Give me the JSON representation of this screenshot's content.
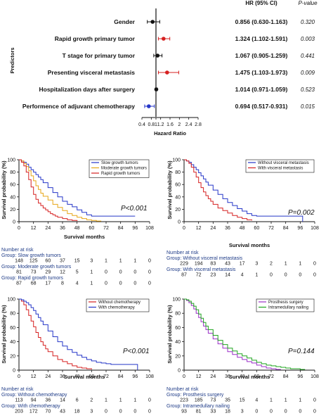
{
  "colors": {
    "red": "#d62020",
    "blue": "#2536c8",
    "black": "#111111",
    "yellow": "#e7a617",
    "green": "#1fa41f",
    "purple": "#9b2fc8"
  },
  "forest": {
    "ylabel": "Predictors",
    "xlabel": "Hazard Ratio",
    "col_hr": "HR (95% CI)",
    "col_p": "P-value",
    "rows": [
      {
        "label": "Gender",
        "hr_text": "0.856 (0.630-1.163)",
        "p_text": "0.320"
      },
      {
        "label": "Rapid growth primary tumor",
        "hr_text": "1.324 (1.102-1.591)",
        "p_text": "0.003"
      },
      {
        "label": "T stage for primary tumor",
        "hr_text": "1.067 (0.905-1.259)",
        "p_text": "0.441"
      },
      {
        "label": "Presenting visceral metastasis",
        "hr_text": "1.475 (1.103-1.973)",
        "p_text": "0.009"
      },
      {
        "label": "Hospitalization days after surgery",
        "hr_text": "1.014 (0.971-1.059)",
        "p_text": "0.523"
      },
      {
        "label": "Performence of adjuvant chemotherapy",
        "hr_text": "0.694 (0.517-0.931)",
        "p_text": "0.015"
      }
    ]
  },
  "chart_data": [
    {
      "type": "forest",
      "xlabel": "Hazard Ratio",
      "ylabel": "Predictors",
      "x_ticks": [
        "0.4",
        "0.8",
        "1",
        "1.2",
        "1.6",
        "2",
        "2.4",
        "2.8"
      ],
      "xlim": [
        0.4,
        2.8
      ],
      "ref_line": 1,
      "series": [
        {
          "label": "Gender",
          "hr": 0.856,
          "lo": 0.63,
          "hi": 1.163,
          "color": "black"
        },
        {
          "label": "Rapid growth primary tumor",
          "hr": 1.324,
          "lo": 1.102,
          "hi": 1.591,
          "color": "red"
        },
        {
          "label": "T stage for primary tumor",
          "hr": 1.067,
          "lo": 0.905,
          "hi": 1.259,
          "color": "black"
        },
        {
          "label": "Presenting visceral metastasis",
          "hr": 1.475,
          "lo": 1.103,
          "hi": 1.973,
          "color": "red"
        },
        {
          "label": "Hospitalization days after surgery",
          "hr": 1.014,
          "lo": 0.971,
          "hi": 1.059,
          "color": "black"
        },
        {
          "label": "Performence of adjuvant chemotherapy",
          "hr": 0.694,
          "lo": 0.517,
          "hi": 0.931,
          "color": "blue"
        }
      ]
    },
    {
      "type": "line",
      "xlabel": "Survival months",
      "ylabel": "Survival probability (%)",
      "xlim": [
        0,
        108
      ],
      "ylim": [
        0,
        100
      ],
      "x_ticks": [
        "0",
        "12",
        "24",
        "36",
        "48",
        "60",
        "72",
        "84",
        "96",
        "108"
      ],
      "y_ticks": [
        "0",
        "20",
        "40",
        "60",
        "80",
        "100"
      ],
      "p_label": "P<0.001",
      "series": [
        {
          "name": "Slow growth tumors",
          "color": "blue",
          "x": [
            0,
            2,
            4,
            6,
            8,
            10,
            12,
            14,
            16,
            18,
            20,
            24,
            28,
            32,
            36,
            40,
            44,
            48,
            52,
            56,
            60,
            64,
            96
          ],
          "y": [
            100,
            98,
            96,
            93,
            88,
            84,
            80,
            76,
            72,
            68,
            63,
            55,
            47,
            40,
            33,
            28,
            24,
            19,
            15,
            11,
            9,
            9,
            9
          ]
        },
        {
          "name": "Moderate growth tumors",
          "color": "yellow",
          "x": [
            0,
            2,
            4,
            6,
            8,
            10,
            12,
            14,
            16,
            18,
            20,
            24,
            28,
            32,
            36,
            40,
            44,
            48,
            52,
            56,
            60,
            64,
            68
          ],
          "y": [
            100,
            98,
            94,
            89,
            82,
            74,
            66,
            58,
            52,
            46,
            41,
            35,
            28,
            23,
            18,
            13,
            10,
            7,
            5,
            3,
            2,
            1,
            1
          ]
        },
        {
          "name": "Rapid growth tumors",
          "color": "red",
          "x": [
            0,
            2,
            4,
            6,
            8,
            10,
            12,
            14,
            16,
            18,
            20,
            22,
            24,
            26,
            28,
            30,
            32,
            36,
            40,
            44,
            48
          ],
          "y": [
            100,
            96,
            90,
            80,
            68,
            56,
            44,
            36,
            30,
            26,
            22,
            19,
            16,
            13,
            11,
            9,
            7,
            5,
            3,
            2,
            1
          ]
        }
      ],
      "risk": {
        "title": "Number at risk",
        "groups": [
          {
            "label": "Group: Slow growth tumors",
            "values": [
              "148",
              "125",
              "60",
              "37",
              "15",
              "3",
              "1",
              "1",
              "1",
              "0"
            ]
          },
          {
            "label": "Group: Moderate growth tumors",
            "values": [
              "81",
              "73",
              "29",
              "12",
              "5",
              "1",
              "0",
              "0",
              "0",
              "0"
            ]
          },
          {
            "label": "Group: Rapid growth tumors",
            "values": [
              "87",
              "68",
              "17",
              "8",
              "4",
              "1",
              "0",
              "0",
              "0",
              "0"
            ]
          }
        ]
      }
    },
    {
      "type": "line",
      "xlabel": "Survival months",
      "ylabel": "Survival probability (%)",
      "xlim": [
        0,
        108
      ],
      "ylim": [
        0,
        100
      ],
      "x_ticks": [
        "0",
        "12",
        "24",
        "36",
        "48",
        "60",
        "72",
        "84",
        "96",
        "108"
      ],
      "y_ticks": [
        "0",
        "20",
        "40",
        "60",
        "80",
        "100"
      ],
      "p_label": "P=0.002",
      "series": [
        {
          "name": "Without visceral metastasis",
          "color": "blue",
          "x": [
            0,
            2,
            4,
            6,
            8,
            10,
            12,
            14,
            16,
            18,
            20,
            24,
            28,
            32,
            36,
            40,
            44,
            48,
            52,
            56,
            60,
            96,
            98
          ],
          "y": [
            100,
            98,
            96,
            92,
            88,
            84,
            79,
            74,
            69,
            64,
            59,
            51,
            44,
            37,
            31,
            26,
            21,
            17,
            13,
            10,
            9,
            9,
            0
          ]
        },
        {
          "name": "With visceral metastasis",
          "color": "red",
          "x": [
            0,
            2,
            4,
            6,
            8,
            10,
            12,
            14,
            16,
            18,
            20,
            22,
            24,
            28,
            32,
            36,
            40,
            44,
            48,
            52,
            56
          ],
          "y": [
            100,
            98,
            94,
            88,
            80,
            72,
            63,
            55,
            48,
            42,
            37,
            33,
            28,
            22,
            18,
            14,
            10,
            7,
            5,
            3,
            2
          ]
        }
      ],
      "risk": {
        "title": "Number at risk",
        "groups": [
          {
            "label": "Group: Without visceral metastasis",
            "values": [
              "229",
              "194",
              "83",
              "43",
              "17",
              "3",
              "2",
              "1",
              "1",
              "0"
            ]
          },
          {
            "label": "Group: With visceral metastasis",
            "values": [
              "87",
              "72",
              "23",
              "14",
              "4",
              "1",
              "0",
              "0",
              "0",
              "0"
            ]
          }
        ]
      }
    },
    {
      "type": "line",
      "xlabel": "Survival months",
      "ylabel": "Survival probability (%)",
      "xlim": [
        0,
        108
      ],
      "ylim": [
        0,
        100
      ],
      "x_ticks": [
        "0",
        "12",
        "24",
        "36",
        "48",
        "60",
        "72",
        "84",
        "96",
        "108"
      ],
      "y_ticks": [
        "0",
        "20",
        "40",
        "60",
        "80",
        "100"
      ],
      "p_label": "P<0.001",
      "series": [
        {
          "name": "Without chemotherapy",
          "color": "red",
          "x": [
            0,
            2,
            4,
            6,
            8,
            10,
            12,
            14,
            16,
            18,
            20,
            22,
            24,
            28,
            32,
            36,
            40,
            44,
            48,
            52,
            56,
            60
          ],
          "y": [
            100,
            97,
            92,
            85,
            77,
            69,
            61,
            53,
            46,
            40,
            35,
            30,
            26,
            20,
            15,
            12,
            9,
            6,
            4,
            3,
            2,
            1
          ]
        },
        {
          "name": "With chemotherapy",
          "color": "blue",
          "x": [
            0,
            2,
            4,
            6,
            8,
            10,
            12,
            14,
            16,
            18,
            20,
            24,
            28,
            32,
            36,
            40,
            44,
            48,
            52,
            56,
            60,
            64,
            68,
            72,
            76,
            84,
            96,
            98
          ],
          "y": [
            100,
            99,
            97,
            95,
            92,
            88,
            84,
            79,
            74,
            69,
            64,
            55,
            47,
            40,
            34,
            29,
            25,
            21,
            18,
            15,
            13,
            11,
            10,
            9,
            8,
            8,
            8,
            0
          ]
        }
      ],
      "risk": {
        "title": "Number at risk",
        "groups": [
          {
            "label": "Group: Without chemotherapy",
            "values": [
              "113",
              "94",
              "36",
              "14",
              "6",
              "2",
              "1",
              "1",
              "1",
              "0"
            ]
          },
          {
            "label": "Group: With chemotherapy",
            "values": [
              "203",
              "172",
              "70",
              "43",
              "18",
              "3",
              "0",
              "0",
              "0",
              "0"
            ]
          }
        ]
      }
    },
    {
      "type": "line",
      "xlabel": "Survival months",
      "ylabel": "Survival probability (%)",
      "xlim": [
        0,
        108
      ],
      "ylim": [
        0,
        100
      ],
      "x_ticks": [
        "0",
        "12",
        "24",
        "36",
        "48",
        "60",
        "72",
        "84",
        "96",
        "108"
      ],
      "y_ticks": [
        "0",
        "20",
        "40",
        "60",
        "80",
        "100"
      ],
      "p_label": "P=0.144",
      "series": [
        {
          "name": "Prosthesis surgery",
          "color": "purple",
          "x": [
            0,
            2,
            4,
            6,
            8,
            10,
            12,
            14,
            16,
            18,
            20,
            24,
            28,
            32,
            36,
            40,
            44,
            48,
            52,
            56,
            60,
            64,
            68,
            72,
            76,
            80
          ],
          "y": [
            100,
            98,
            95,
            91,
            86,
            80,
            74,
            68,
            62,
            57,
            52,
            44,
            37,
            31,
            26,
            22,
            18,
            15,
            12,
            10,
            7,
            5,
            3,
            2,
            1,
            1
          ]
        },
        {
          "name": "Intramedullary nailing",
          "color": "green",
          "x": [
            0,
            2,
            4,
            6,
            8,
            10,
            12,
            14,
            16,
            18,
            20,
            24,
            28,
            32,
            36,
            40,
            44,
            48,
            52,
            56,
            60,
            64,
            68,
            72,
            76,
            80,
            84,
            88,
            96,
            100
          ],
          "y": [
            100,
            99,
            97,
            94,
            90,
            85,
            79,
            73,
            67,
            62,
            57,
            49,
            42,
            36,
            31,
            27,
            23,
            20,
            17,
            14,
            11,
            9,
            7,
            6,
            5,
            4,
            3,
            2,
            1,
            1
          ]
        }
      ],
      "risk": {
        "title": "Number at risk",
        "groups": [
          {
            "label": "Group: Prosthesis surgery",
            "values": [
              "223",
              "185",
              "73",
              "35",
              "15",
              "4",
              "1",
              "1",
              "1",
              "0"
            ]
          },
          {
            "label": "Group: Intramedullary nailing",
            "values": [
              "93",
              "81",
              "33",
              "18",
              "3",
              "0",
              "0",
              "0",
              "0",
              "0"
            ]
          }
        ]
      }
    }
  ]
}
